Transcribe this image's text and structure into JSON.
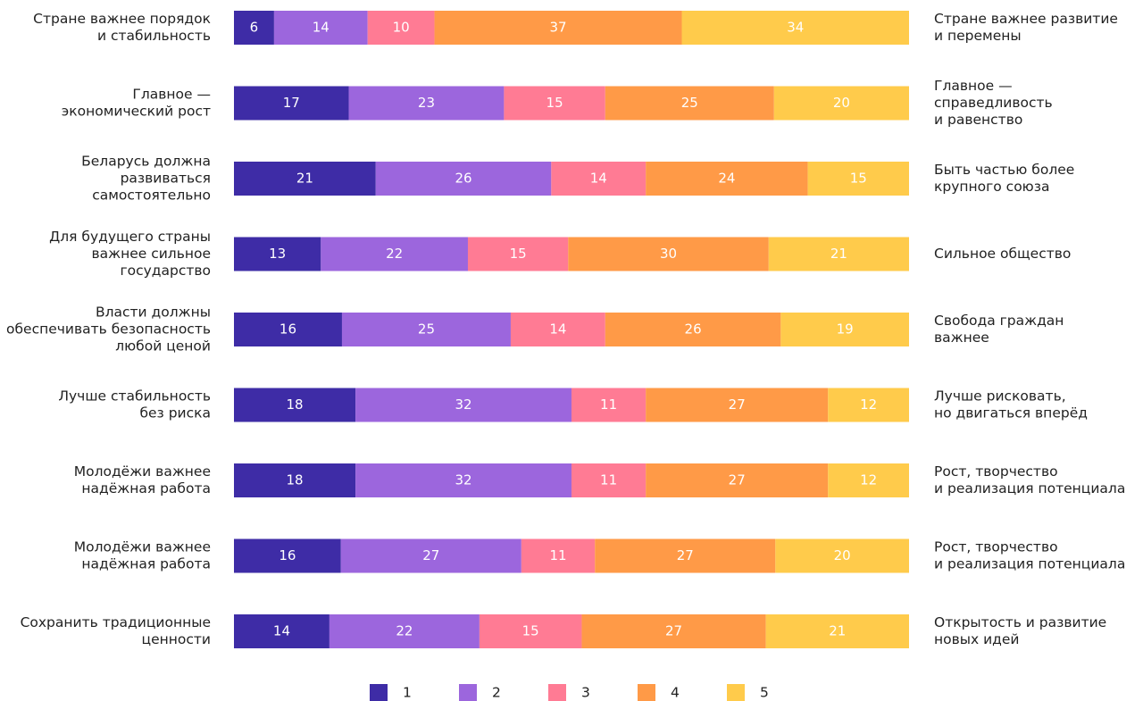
{
  "chart_data": {
    "type": "stacked_bar_100",
    "left_labels": [
      [
        "Стране важнее порядок",
        "и стабильность"
      ],
      [
        "Главное —",
        "экономический рост"
      ],
      [
        "Беларусь должна",
        "развиваться",
        "самостоятельно"
      ],
      [
        "Для будущего страны",
        "важнее сильное",
        "государство"
      ],
      [
        "Власти должны",
        "обеспечивать безопасность",
        "любой ценой"
      ],
      [
        "Лучше стабильность",
        "без риска"
      ],
      [
        "Молодёжи важнее",
        "надёжная работа"
      ],
      [
        "Молодёжи важнее",
        "надёжная работа"
      ],
      [
        "Сохранить традиционные",
        "ценности"
      ]
    ],
    "right_labels": [
      [
        "Стране важнее развитие",
        "и перемены"
      ],
      [
        "Главное —",
        "справедливость",
        "и равенство"
      ],
      [
        "Быть частью более",
        "крупного союза"
      ],
      [
        "Сильное общество"
      ],
      [
        "Свобода граждан",
        "важнее"
      ],
      [
        "Лучше рисковать,",
        "но двигаться вперёд"
      ],
      [
        "Рост, творчество",
        "и реализация потенциала"
      ],
      [
        "Рост, творчество",
        "и реализация потенциала"
      ],
      [
        "Открытость и развитие",
        "новых идей"
      ]
    ],
    "series": [
      {
        "name": "1",
        "color": "#3e2ca6",
        "values": [
          6,
          17,
          21,
          13,
          16,
          18,
          18,
          16,
          14
        ]
      },
      {
        "name": "2",
        "color": "#9c66dd",
        "values": [
          14,
          23,
          26,
          22,
          25,
          32,
          32,
          27,
          22
        ]
      },
      {
        "name": "3",
        "color": "#ff7b94",
        "values": [
          10,
          15,
          14,
          15,
          14,
          11,
          11,
          11,
          15
        ]
      },
      {
        "name": "4",
        "color": "#ff9a47",
        "values": [
          37,
          25,
          24,
          30,
          26,
          27,
          27,
          27,
          27
        ]
      },
      {
        "name": "5",
        "color": "#ffcb4b",
        "values": [
          34,
          20,
          15,
          21,
          19,
          12,
          12,
          20,
          21
        ]
      }
    ]
  }
}
